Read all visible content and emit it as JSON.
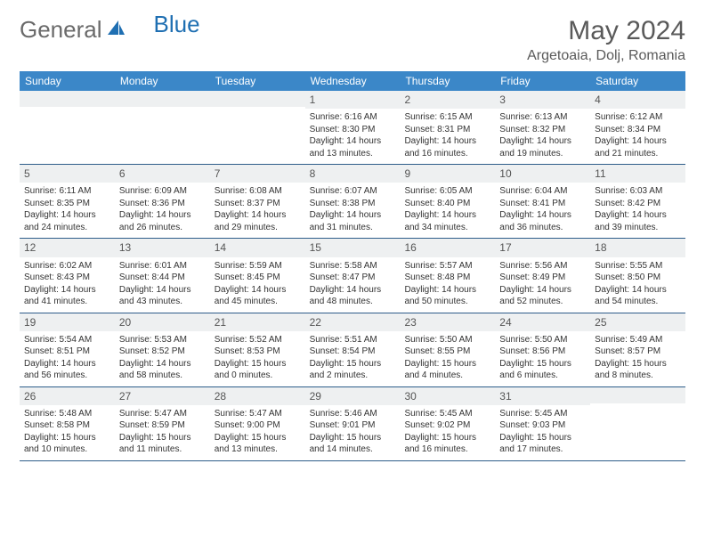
{
  "logo": {
    "text1": "General",
    "text2": "Blue"
  },
  "title": "May 2024",
  "location": "Argetoaia, Dolj, Romania",
  "colors": {
    "header_bg": "#3b87c8",
    "header_text": "#ffffff",
    "daynum_bg": "#eef0f1",
    "border": "#2e5d8a",
    "body_text": "#333333",
    "title_text": "#5a5a5a",
    "logo_gray": "#6a6a6a",
    "logo_blue": "#1f6fb2"
  },
  "weekdays": [
    "Sunday",
    "Monday",
    "Tuesday",
    "Wednesday",
    "Thursday",
    "Friday",
    "Saturday"
  ],
  "weeks": [
    [
      {
        "n": "",
        "sr": "",
        "ss": "",
        "dl": ""
      },
      {
        "n": "",
        "sr": "",
        "ss": "",
        "dl": ""
      },
      {
        "n": "",
        "sr": "",
        "ss": "",
        "dl": ""
      },
      {
        "n": "1",
        "sr": "Sunrise: 6:16 AM",
        "ss": "Sunset: 8:30 PM",
        "dl": "Daylight: 14 hours and 13 minutes."
      },
      {
        "n": "2",
        "sr": "Sunrise: 6:15 AM",
        "ss": "Sunset: 8:31 PM",
        "dl": "Daylight: 14 hours and 16 minutes."
      },
      {
        "n": "3",
        "sr": "Sunrise: 6:13 AM",
        "ss": "Sunset: 8:32 PM",
        "dl": "Daylight: 14 hours and 19 minutes."
      },
      {
        "n": "4",
        "sr": "Sunrise: 6:12 AM",
        "ss": "Sunset: 8:34 PM",
        "dl": "Daylight: 14 hours and 21 minutes."
      }
    ],
    [
      {
        "n": "5",
        "sr": "Sunrise: 6:11 AM",
        "ss": "Sunset: 8:35 PM",
        "dl": "Daylight: 14 hours and 24 minutes."
      },
      {
        "n": "6",
        "sr": "Sunrise: 6:09 AM",
        "ss": "Sunset: 8:36 PM",
        "dl": "Daylight: 14 hours and 26 minutes."
      },
      {
        "n": "7",
        "sr": "Sunrise: 6:08 AM",
        "ss": "Sunset: 8:37 PM",
        "dl": "Daylight: 14 hours and 29 minutes."
      },
      {
        "n": "8",
        "sr": "Sunrise: 6:07 AM",
        "ss": "Sunset: 8:38 PM",
        "dl": "Daylight: 14 hours and 31 minutes."
      },
      {
        "n": "9",
        "sr": "Sunrise: 6:05 AM",
        "ss": "Sunset: 8:40 PM",
        "dl": "Daylight: 14 hours and 34 minutes."
      },
      {
        "n": "10",
        "sr": "Sunrise: 6:04 AM",
        "ss": "Sunset: 8:41 PM",
        "dl": "Daylight: 14 hours and 36 minutes."
      },
      {
        "n": "11",
        "sr": "Sunrise: 6:03 AM",
        "ss": "Sunset: 8:42 PM",
        "dl": "Daylight: 14 hours and 39 minutes."
      }
    ],
    [
      {
        "n": "12",
        "sr": "Sunrise: 6:02 AM",
        "ss": "Sunset: 8:43 PM",
        "dl": "Daylight: 14 hours and 41 minutes."
      },
      {
        "n": "13",
        "sr": "Sunrise: 6:01 AM",
        "ss": "Sunset: 8:44 PM",
        "dl": "Daylight: 14 hours and 43 minutes."
      },
      {
        "n": "14",
        "sr": "Sunrise: 5:59 AM",
        "ss": "Sunset: 8:45 PM",
        "dl": "Daylight: 14 hours and 45 minutes."
      },
      {
        "n": "15",
        "sr": "Sunrise: 5:58 AM",
        "ss": "Sunset: 8:47 PM",
        "dl": "Daylight: 14 hours and 48 minutes."
      },
      {
        "n": "16",
        "sr": "Sunrise: 5:57 AM",
        "ss": "Sunset: 8:48 PM",
        "dl": "Daylight: 14 hours and 50 minutes."
      },
      {
        "n": "17",
        "sr": "Sunrise: 5:56 AM",
        "ss": "Sunset: 8:49 PM",
        "dl": "Daylight: 14 hours and 52 minutes."
      },
      {
        "n": "18",
        "sr": "Sunrise: 5:55 AM",
        "ss": "Sunset: 8:50 PM",
        "dl": "Daylight: 14 hours and 54 minutes."
      }
    ],
    [
      {
        "n": "19",
        "sr": "Sunrise: 5:54 AM",
        "ss": "Sunset: 8:51 PM",
        "dl": "Daylight: 14 hours and 56 minutes."
      },
      {
        "n": "20",
        "sr": "Sunrise: 5:53 AM",
        "ss": "Sunset: 8:52 PM",
        "dl": "Daylight: 14 hours and 58 minutes."
      },
      {
        "n": "21",
        "sr": "Sunrise: 5:52 AM",
        "ss": "Sunset: 8:53 PM",
        "dl": "Daylight: 15 hours and 0 minutes."
      },
      {
        "n": "22",
        "sr": "Sunrise: 5:51 AM",
        "ss": "Sunset: 8:54 PM",
        "dl": "Daylight: 15 hours and 2 minutes."
      },
      {
        "n": "23",
        "sr": "Sunrise: 5:50 AM",
        "ss": "Sunset: 8:55 PM",
        "dl": "Daylight: 15 hours and 4 minutes."
      },
      {
        "n": "24",
        "sr": "Sunrise: 5:50 AM",
        "ss": "Sunset: 8:56 PM",
        "dl": "Daylight: 15 hours and 6 minutes."
      },
      {
        "n": "25",
        "sr": "Sunrise: 5:49 AM",
        "ss": "Sunset: 8:57 PM",
        "dl": "Daylight: 15 hours and 8 minutes."
      }
    ],
    [
      {
        "n": "26",
        "sr": "Sunrise: 5:48 AM",
        "ss": "Sunset: 8:58 PM",
        "dl": "Daylight: 15 hours and 10 minutes."
      },
      {
        "n": "27",
        "sr": "Sunrise: 5:47 AM",
        "ss": "Sunset: 8:59 PM",
        "dl": "Daylight: 15 hours and 11 minutes."
      },
      {
        "n": "28",
        "sr": "Sunrise: 5:47 AM",
        "ss": "Sunset: 9:00 PM",
        "dl": "Daylight: 15 hours and 13 minutes."
      },
      {
        "n": "29",
        "sr": "Sunrise: 5:46 AM",
        "ss": "Sunset: 9:01 PM",
        "dl": "Daylight: 15 hours and 14 minutes."
      },
      {
        "n": "30",
        "sr": "Sunrise: 5:45 AM",
        "ss": "Sunset: 9:02 PM",
        "dl": "Daylight: 15 hours and 16 minutes."
      },
      {
        "n": "31",
        "sr": "Sunrise: 5:45 AM",
        "ss": "Sunset: 9:03 PM",
        "dl": "Daylight: 15 hours and 17 minutes."
      },
      {
        "n": "",
        "sr": "",
        "ss": "",
        "dl": ""
      }
    ]
  ]
}
